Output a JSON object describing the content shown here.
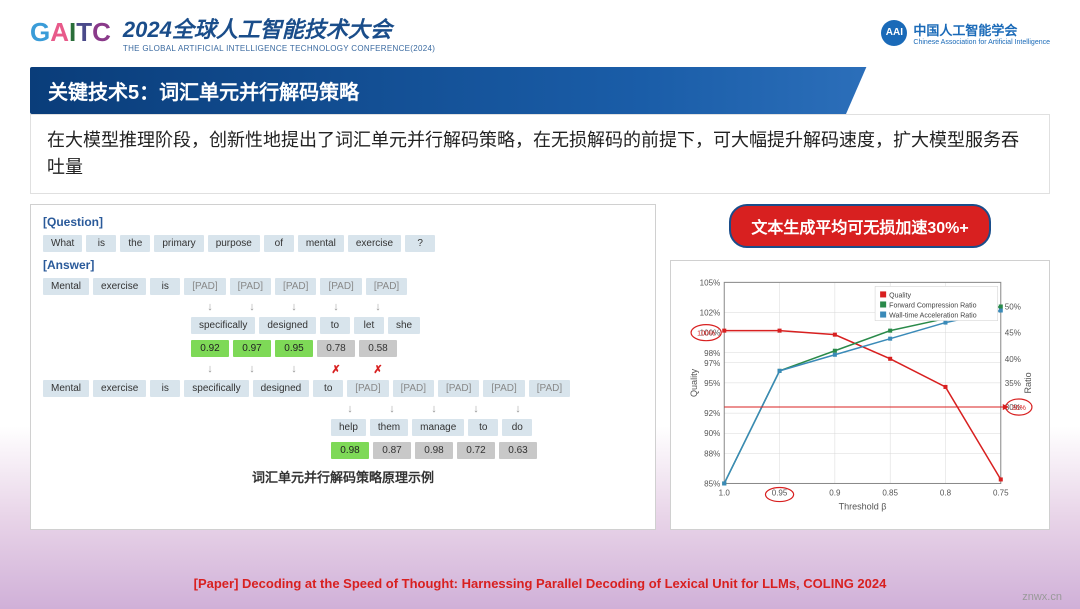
{
  "header": {
    "gaitc_parts": [
      "G",
      "A",
      "I",
      "T",
      "C"
    ],
    "conf_cn": "2024全球人工智能技术大会",
    "conf_en": "THE GLOBAL ARTIFICIAL INTELLIGENCE TECHNOLOGY CONFERENCE(2024)",
    "caai_badge": "AAI",
    "caai_cn": "中国人工智能学会",
    "caai_en": "Chinese Association for Artificial Intelligence"
  },
  "section_title": "关键技术5：词汇单元并行解码策略",
  "description": "在大模型推理阶段，创新性地提出了词汇单元并行解码策略，在无损解码的前提下，可大幅提升解码速度，扩大模型服务吞吐量",
  "diagram": {
    "q_label": "[Question]",
    "a_label": "[Answer]",
    "q_tokens": [
      "What",
      "is",
      "the",
      "primary",
      "purpose",
      "of",
      "mental",
      "exercise",
      "?"
    ],
    "row1": [
      "Mental",
      "exercise",
      "is",
      "[PAD]",
      "[PAD]",
      "[PAD]",
      "[PAD]",
      "[PAD]"
    ],
    "row2": [
      "specifically",
      "designed",
      "to",
      "let",
      "she"
    ],
    "nums1": [
      "0.92",
      "0.97",
      "0.95",
      "0.78",
      "0.58"
    ],
    "nums1_cls": [
      "grn",
      "grn",
      "grn",
      "gry",
      "gry"
    ],
    "arr2": [
      "↓",
      "↓",
      "↓",
      "✗",
      "✗"
    ],
    "arr2_cls": [
      "",
      "",
      "",
      "red",
      "red"
    ],
    "row3": [
      "Mental",
      "exercise",
      "is",
      "specifically",
      "designed",
      "to",
      "[PAD]",
      "[PAD]",
      "[PAD]",
      "[PAD]",
      "[PAD]"
    ],
    "row4": [
      "help",
      "them",
      "manage",
      "to",
      "do"
    ],
    "nums2": [
      "0.98",
      "0.87",
      "0.98",
      "0.72",
      "0.63"
    ],
    "nums2_cls": [
      "grn",
      "gry",
      "gry",
      "gry",
      "gry"
    ],
    "caption": "词汇单元并行解码策略原理示例"
  },
  "badge_text": "文本生成平均可无损加速30%+",
  "chart": {
    "ylabel": "Quality",
    "y2label": "Ratio",
    "xlabel": "Threshold β",
    "yticks": [
      "85%",
      "88%",
      "90%",
      "92%",
      "95%",
      "97%",
      "98%",
      "100%",
      "102%",
      "105%"
    ],
    "yt_pos": [
      0,
      15,
      25,
      35,
      50,
      60,
      65,
      75,
      85,
      100
    ],
    "y2ticks": [
      "30%",
      "35%",
      "40%",
      "45%",
      "50%"
    ],
    "y2_pos": [
      38,
      50,
      62,
      75,
      88
    ],
    "xticks": [
      "1.0",
      "0.95",
      "0.9",
      "0.85",
      "0.8",
      "0.75"
    ],
    "legend": [
      "Quality",
      "Forward Compression Ratio",
      "Wall-time Acceleration Ratio"
    ],
    "legend_colors": [
      "#d82020",
      "#2a8a4a",
      "#3a8ab8"
    ],
    "quality": [
      [
        0,
        76
      ],
      [
        20,
        76
      ],
      [
        40,
        74
      ],
      [
        60,
        62
      ],
      [
        80,
        48
      ],
      [
        100,
        2
      ]
    ],
    "fwd": [
      [
        0,
        0
      ],
      [
        20,
        56
      ],
      [
        40,
        66
      ],
      [
        60,
        76
      ],
      [
        80,
        82
      ],
      [
        100,
        88
      ]
    ],
    "wall": [
      [
        0,
        0
      ],
      [
        20,
        56
      ],
      [
        40,
        64
      ],
      [
        60,
        72
      ],
      [
        80,
        80
      ],
      [
        100,
        86
      ]
    ],
    "circle_100": "100%",
    "circle_30": "30%",
    "circle_095": "0.95",
    "colors": {
      "quality": "#d82020",
      "fwd": "#2a8a4a",
      "wall": "#3a8ab8",
      "grid": "#d8d8d8",
      "circle": "#d82020"
    }
  },
  "paper_ref": {
    "prefix": "[Paper] ",
    "title": "Decoding at the Speed of Thought: Harnessing Parallel Decoding of Lexical Unit for LLMs, COLING 2024"
  },
  "watermark": "znwx.cn"
}
